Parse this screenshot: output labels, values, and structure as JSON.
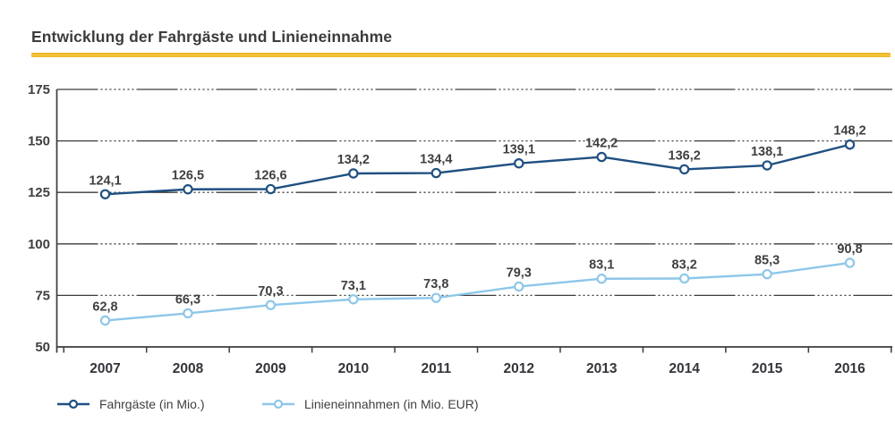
{
  "title": "Entwicklung der Fahrgäste und Linieneinnahme",
  "colors": {
    "accent_bar": "#F0B929",
    "axis": "#3C3C3B",
    "text": "#3F4041",
    "series_dark_blue": "#1F5081",
    "series_light_blue": "#8EC7E9"
  },
  "chart_data": {
    "type": "line",
    "title": "Entwicklung der Fahrgäste und Linieneinnahme",
    "categories": [
      "2007",
      "2008",
      "2009",
      "2010",
      "2011",
      "2012",
      "2013",
      "2014",
      "2015",
      "2016"
    ],
    "series": [
      {
        "name": "Fahrgäste (in Mio.)",
        "color": "#1F5081",
        "values": [
          124.1,
          126.5,
          126.6,
          134.2,
          134.4,
          139.1,
          142.2,
          136.2,
          138.1,
          148.2
        ],
        "labels": [
          "124,1",
          "126,5",
          "126,6",
          "134,2",
          "134,4",
          "139,1",
          "142,2",
          "136,2",
          "138,1",
          "148,2"
        ]
      },
      {
        "name": "Linieneinnahmen (in Mio. EUR)",
        "color": "#8EC7E9",
        "values": [
          62.8,
          66.3,
          70.3,
          73.1,
          73.8,
          79.3,
          83.1,
          83.2,
          85.3,
          90.8
        ],
        "labels": [
          "62,8",
          "66,3",
          "70,3",
          "73,1",
          "73,8",
          "79,3",
          "83,1",
          "83,2",
          "85,3",
          "90,8"
        ]
      }
    ],
    "xlabel": "",
    "ylabel": "",
    "ylim": [
      50,
      175
    ],
    "yticks": [
      50,
      75,
      100,
      125,
      150,
      175
    ],
    "grid": "horizontal-dash-dot",
    "marker": "open-circle",
    "legend_position": "bottom"
  }
}
